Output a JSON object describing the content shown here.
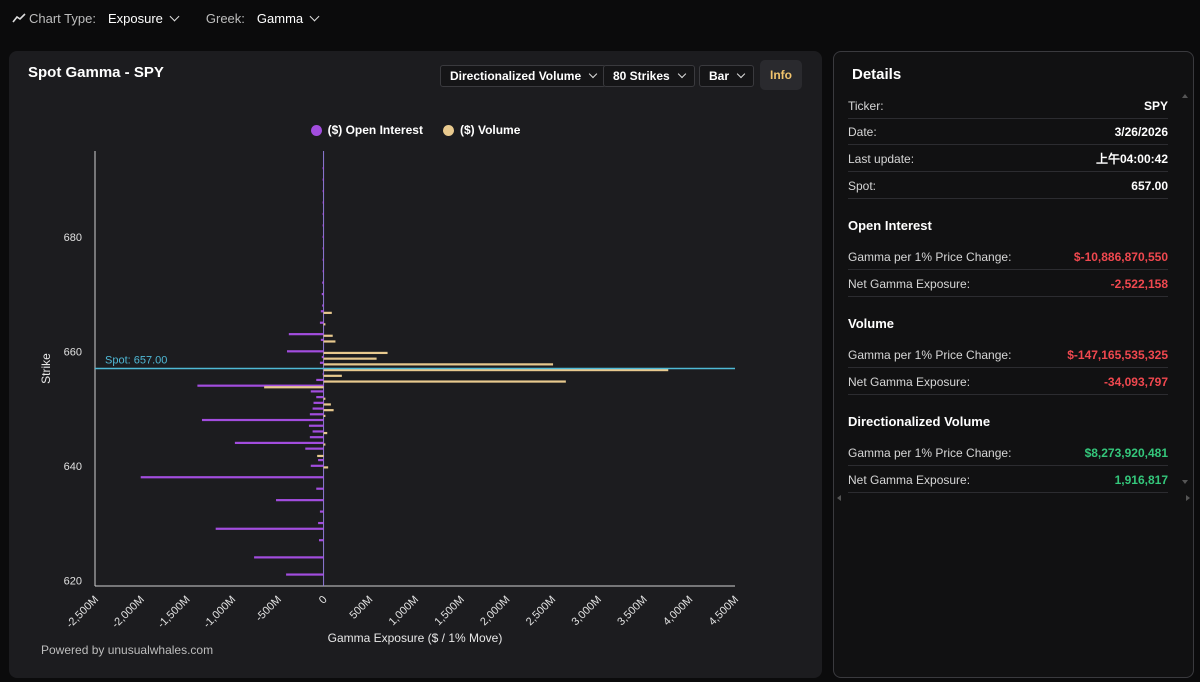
{
  "toolbar": {
    "chart_type_label": "Chart Type:",
    "chart_type_value": "Exposure",
    "greek_label": "Greek:",
    "greek_value": "Gamma"
  },
  "chart_panel": {
    "title": "Spot Gamma - SPY",
    "controls": {
      "volume_mode": "Directionalized Volume",
      "strikes": "80 Strikes",
      "chart_style": "Bar",
      "info": "Info"
    },
    "powered_by": "Powered by unusualwhales.com"
  },
  "chart_data": {
    "type": "bar",
    "orientation": "horizontal",
    "xlabel": "Gamma Exposure ($ / 1% Move)",
    "ylabel": "Strike",
    "x_ticks": [
      "-2,500M",
      "-2,000M",
      "-1,500M",
      "-1,000M",
      "-500M",
      "0",
      "500M",
      "1,000M",
      "1,500M",
      "2,000M",
      "2,500M",
      "3,000M",
      "3,500M",
      "4,000M",
      "4,500M"
    ],
    "x_tick_values": [
      -2500,
      -2000,
      -1500,
      -1000,
      -500,
      0,
      500,
      1000,
      1500,
      2000,
      2500,
      3000,
      3500,
      4000,
      4500
    ],
    "xlim": [
      -2500,
      4500
    ],
    "y_ticks": [
      "620",
      "640",
      "660",
      "680"
    ],
    "y_tick_values": [
      620,
      640,
      660,
      680
    ],
    "ylim": [
      619,
      695
    ],
    "spot": {
      "label": "Spot: 657.00",
      "value": 657
    },
    "series": [
      {
        "name": "($) Open Interest",
        "color": "#a24dde",
        "strikes": [
          621,
          624,
          627,
          629,
          630,
          632,
          634,
          636,
          638,
          640,
          641,
          643,
          644,
          645,
          646,
          647,
          648,
          649,
          650,
          651,
          652,
          653,
          654,
          655,
          656,
          657,
          658,
          659,
          660,
          662,
          663,
          665,
          667,
          668,
          670,
          672,
          674,
          676,
          678,
          680,
          682,
          684,
          686,
          688,
          690,
          692
        ],
        "values": [
          -410,
          -760,
          -50,
          -1180,
          -60,
          -40,
          -520,
          -80,
          -2000,
          -140,
          -60,
          -200,
          -970,
          -150,
          -120,
          -160,
          -1330,
          -150,
          -120,
          -110,
          -80,
          -140,
          -1380,
          -80,
          -10,
          -10,
          -40,
          -20,
          -400,
          -30,
          -380,
          -40,
          -30,
          -15,
          -20,
          -15,
          -10,
          -10,
          -10,
          -10,
          -10,
          -10,
          -10,
          -10,
          -10,
          -10
        ]
      },
      {
        "name": "($) Volume",
        "color": "#e8c98e",
        "strikes": [
          640,
          642,
          644,
          646,
          649,
          650,
          651,
          652,
          654,
          655,
          656,
          657,
          658,
          659,
          660,
          662,
          663,
          665,
          667
        ],
        "values": [
          50,
          -70,
          20,
          40,
          20,
          110,
          80,
          20,
          -650,
          2650,
          200,
          3770,
          2510,
          580,
          700,
          130,
          100,
          20,
          90
        ]
      }
    ]
  },
  "details": {
    "title": "Details",
    "rows": [
      {
        "label": "Ticker:",
        "value": "SPY"
      },
      {
        "label": "Date:",
        "value": "3/26/2026"
      },
      {
        "label": "Last update:",
        "value": "上午04:00:42"
      },
      {
        "label": "Spot:",
        "value": "657.00"
      }
    ],
    "open_interest": {
      "heading": "Open Interest",
      "gamma_label": "Gamma per 1% Price Change:",
      "gamma_value": "$-10,886,870,550",
      "net_label": "Net Gamma Exposure:",
      "net_value": "-2,522,158"
    },
    "volume": {
      "heading": "Volume",
      "gamma_label": "Gamma per 1% Price Change:",
      "gamma_value": "$-147,165,535,325",
      "net_label": "Net Gamma Exposure:",
      "net_value": "-34,093,797"
    },
    "directionalized": {
      "heading": "Directionalized Volume",
      "gamma_label": "Gamma per 1% Price Change:",
      "gamma_value": "$8,273,920,481",
      "net_label": "Net Gamma Exposure:",
      "net_value": "1,916,817"
    },
    "colors": {
      "negative": "#f0484f",
      "positive": "#34c77b"
    }
  }
}
